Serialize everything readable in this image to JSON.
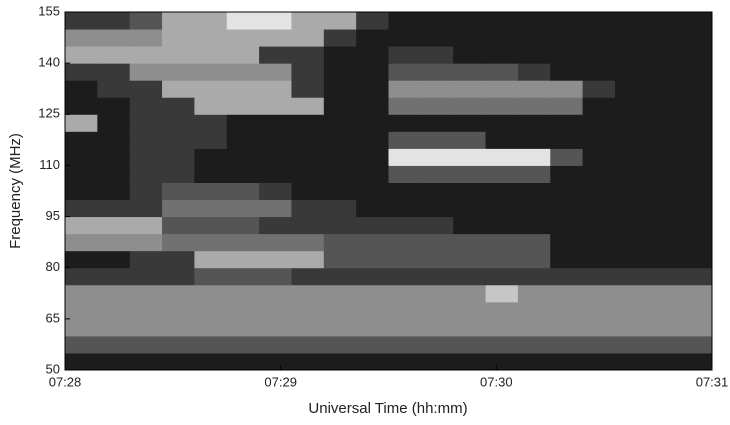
{
  "chart_data": {
    "type": "heatmap",
    "x_label": "Universal Time (hh:mm)",
    "y_label": "Frequency (MHz)",
    "xlim": [
      448,
      451
    ],
    "xticks": [
      {
        "value": 448,
        "label": "07:28"
      },
      {
        "value": 449,
        "label": "07:29"
      },
      {
        "value": 450,
        "label": "07:30"
      },
      {
        "value": 451,
        "label": "07:31"
      }
    ],
    "ylim": [
      50,
      155
    ],
    "yticks": [
      50,
      65,
      80,
      95,
      110,
      125,
      140,
      155
    ],
    "zlim": [
      0,
      9
    ],
    "grid": false,
    "z": [
      [
        1,
        1,
        1,
        1,
        1,
        1,
        1,
        1,
        1,
        1,
        1,
        1,
        1,
        1,
        1,
        1,
        1,
        1,
        1,
        1
      ],
      [
        3,
        3,
        3,
        3,
        3,
        3,
        3,
        3,
        3,
        3,
        3,
        3,
        3,
        3,
        3,
        3,
        3,
        3,
        3,
        3
      ],
      [
        5,
        5,
        5,
        5,
        5,
        5,
        5,
        5,
        5,
        5,
        5,
        5,
        5,
        5,
        5,
        5,
        5,
        5,
        5,
        5
      ],
      [
        5,
        5,
        5,
        5,
        5,
        5,
        5,
        5,
        5,
        5,
        5,
        5,
        5,
        5,
        5,
        5,
        5,
        5,
        5,
        5
      ],
      [
        5,
        5,
        5,
        5,
        5,
        5,
        5,
        5,
        5,
        5,
        5,
        5,
        5,
        7,
        5,
        5,
        5,
        5,
        5,
        5
      ],
      [
        2,
        2,
        2,
        2,
        3,
        3,
        3,
        2,
        2,
        2,
        2,
        2,
        2,
        2,
        2,
        2,
        2,
        2,
        2,
        2
      ],
      [
        1,
        1,
        2,
        2,
        6,
        6,
        6,
        6,
        3,
        3,
        3,
        3,
        3,
        3,
        3,
        1,
        1,
        1,
        1,
        1
      ],
      [
        5,
        5,
        5,
        4,
        4,
        4,
        4,
        4,
        3,
        3,
        3,
        3,
        3,
        3,
        3,
        1,
        1,
        1,
        1,
        1
      ],
      [
        6,
        6,
        6,
        3,
        3,
        3,
        2,
        2,
        2,
        2,
        2,
        2,
        1,
        1,
        1,
        1,
        1,
        1,
        1,
        1
      ],
      [
        2,
        2,
        2,
        4,
        4,
        4,
        4,
        2,
        2,
        1,
        1,
        1,
        1,
        1,
        1,
        1,
        1,
        1,
        1,
        1
      ],
      [
        1,
        1,
        2,
        3,
        3,
        3,
        2,
        1,
        1,
        1,
        1,
        1,
        1,
        1,
        1,
        1,
        1,
        1,
        1,
        1
      ],
      [
        1,
        1,
        2,
        2,
        1,
        1,
        1,
        1,
        1,
        1,
        3,
        3,
        3,
        3,
        3,
        1,
        1,
        1,
        1,
        1
      ],
      [
        1,
        1,
        2,
        2,
        1,
        1,
        1,
        1,
        1,
        1,
        8,
        8,
        8,
        8,
        8,
        3,
        1,
        1,
        1,
        1
      ],
      [
        1,
        1,
        2,
        2,
        2,
        1,
        1,
        1,
        1,
        1,
        3,
        3,
        3,
        1,
        1,
        1,
        1,
        1,
        1,
        1
      ],
      [
        6,
        1,
        2,
        2,
        2,
        1,
        1,
        1,
        1,
        1,
        1,
        1,
        1,
        1,
        1,
        1,
        1,
        1,
        1,
        1
      ],
      [
        1,
        1,
        2,
        2,
        6,
        6,
        6,
        6,
        1,
        1,
        4,
        4,
        4,
        4,
        4,
        4,
        1,
        1,
        1,
        1
      ],
      [
        1,
        2,
        2,
        6,
        6,
        6,
        6,
        2,
        1,
        1,
        5,
        5,
        5,
        5,
        5,
        5,
        2,
        1,
        1,
        1
      ],
      [
        2,
        2,
        5,
        5,
        5,
        5,
        5,
        2,
        1,
        1,
        3,
        3,
        3,
        3,
        2,
        1,
        1,
        1,
        1,
        1
      ],
      [
        6,
        6,
        6,
        6,
        6,
        6,
        2,
        2,
        1,
        1,
        2,
        2,
        1,
        1,
        1,
        1,
        1,
        1,
        1,
        1
      ],
      [
        5,
        5,
        5,
        6,
        6,
        6,
        6,
        6,
        2,
        1,
        1,
        1,
        1,
        1,
        1,
        1,
        1,
        1,
        1,
        1
      ],
      [
        2,
        2,
        3,
        6,
        6,
        8,
        8,
        6,
        6,
        2,
        1,
        1,
        1,
        1,
        1,
        1,
        1,
        1,
        1,
        1
      ]
    ]
  }
}
